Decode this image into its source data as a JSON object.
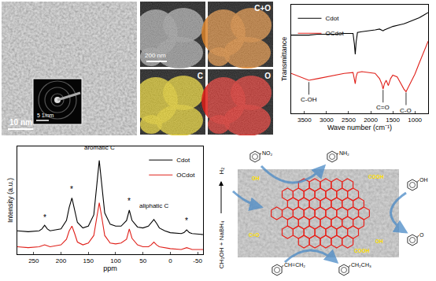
{
  "tem": {
    "scale_bar": "10 nm",
    "inset_scale_bar": "5 1/nm"
  },
  "eds": {
    "scale_bar": "200 nm",
    "maps": [
      {
        "label": "C+O",
        "color": "#d9822b"
      },
      {
        "label": "C",
        "color": "#e6cf1c"
      },
      {
        "label": "O",
        "color": "#dd1f17"
      }
    ]
  },
  "chart_data": [
    {
      "type": "line",
      "x_title": "Wave number (cm⁻¹)",
      "y_title": "Transmittance",
      "xlim": [
        3800,
        700
      ],
      "xticks": [
        3500,
        3000,
        2500,
        2000,
        1500,
        1000
      ],
      "ylim": [
        -0.2,
        1.05
      ],
      "yticks": [],
      "tick_labels": "x",
      "grid": false,
      "legend": "upper left",
      "x": [
        3800,
        3600,
        3400,
        3200,
        3000,
        2800,
        2600,
        2400,
        2370,
        2350,
        2330,
        2300,
        2200,
        2000,
        1900,
        1800,
        1750,
        1720,
        1690,
        1650,
        1600,
        1550,
        1500,
        1400,
        1300,
        1250,
        1200,
        1150,
        1100,
        1000,
        900,
        800,
        700
      ],
      "series": [
        {
          "name": "Cdot",
          "color": "#000000",
          "values": [
            0.7,
            0.7,
            0.7,
            0.71,
            0.71,
            0.71,
            0.72,
            0.72,
            0.6,
            0.48,
            0.62,
            0.73,
            0.74,
            0.75,
            0.76,
            0.77,
            0.76,
            0.75,
            0.76,
            0.77,
            0.78,
            0.79,
            0.8,
            0.81,
            0.82,
            0.83,
            0.84,
            0.85,
            0.86,
            0.88,
            0.9,
            0.93,
            0.96
          ]
        },
        {
          "name": "OCdot",
          "color": "#e0201a",
          "values": [
            0.26,
            0.22,
            0.18,
            0.2,
            0.22,
            0.24,
            0.26,
            0.27,
            0.2,
            0.14,
            0.22,
            0.27,
            0.28,
            0.27,
            0.26,
            0.2,
            0.14,
            0.08,
            0.14,
            0.18,
            0.12,
            0.2,
            0.24,
            0.22,
            0.12,
            0.08,
            0.05,
            0.1,
            0.14,
            0.25,
            0.38,
            0.5,
            0.63
          ]
        }
      ],
      "annotations": [
        {
          "text": "C-OH",
          "x": 3400,
          "y": 0.16
        },
        {
          "text": "C=O",
          "x": 1720,
          "y": 0.07
        },
        {
          "text": "C-O",
          "x": 1200,
          "y": 0.04
        }
      ]
    },
    {
      "type": "line",
      "x_title": "ppm",
      "y_title": "Intensity (a.u.)",
      "xlim": [
        280,
        -60
      ],
      "xticks": [
        250,
        200,
        150,
        100,
        50,
        0,
        -50
      ],
      "ylim": [
        0,
        1.15
      ],
      "yticks": [],
      "tick_labels": "x",
      "grid": false,
      "legend": "upper right",
      "x": [
        280,
        260,
        240,
        235,
        230,
        225,
        220,
        200,
        190,
        185,
        180,
        175,
        170,
        160,
        150,
        140,
        135,
        130,
        125,
        120,
        110,
        100,
        90,
        80,
        75,
        70,
        60,
        50,
        40,
        35,
        30,
        25,
        20,
        10,
        0,
        -20,
        -25,
        -30,
        -35,
        -40,
        -60
      ],
      "series": [
        {
          "name": "Cdot",
          "color": "#000000",
          "values": [
            0.25,
            0.24,
            0.25,
            0.27,
            0.31,
            0.27,
            0.25,
            0.27,
            0.36,
            0.5,
            0.6,
            0.48,
            0.34,
            0.28,
            0.3,
            0.42,
            0.7,
            1.0,
            0.72,
            0.44,
            0.32,
            0.3,
            0.3,
            0.36,
            0.47,
            0.36,
            0.29,
            0.28,
            0.3,
            0.34,
            0.37,
            0.33,
            0.28,
            0.25,
            0.23,
            0.22,
            0.23,
            0.26,
            0.23,
            0.22,
            0.21
          ]
        },
        {
          "name": "OCdot",
          "color": "#e0201a",
          "values": [
            0.08,
            0.07,
            0.08,
            0.09,
            0.1,
            0.09,
            0.08,
            0.1,
            0.16,
            0.25,
            0.3,
            0.22,
            0.13,
            0.1,
            0.12,
            0.2,
            0.38,
            0.55,
            0.38,
            0.2,
            0.12,
            0.11,
            0.12,
            0.16,
            0.27,
            0.17,
            0.1,
            0.08,
            0.08,
            0.1,
            0.13,
            0.1,
            0.08,
            0.07,
            0.06,
            0.05,
            0.06,
            0.07,
            0.06,
            0.05,
            0.05
          ]
        }
      ],
      "annotations": [
        {
          "text": "aromatic C",
          "x": 130,
          "y": 1.08
        },
        {
          "text": "aliphatic C",
          "x": 30,
          "y": 0.46
        },
        {
          "text": "*",
          "x": 230,
          "y": 0.33
        },
        {
          "text": "*",
          "x": 180,
          "y": 0.63
        },
        {
          "text": "*",
          "x": 75,
          "y": 0.5
        },
        {
          "text": "*",
          "x": -30,
          "y": 0.29
        }
      ]
    }
  ],
  "scheme": {
    "reductant": "CH₃OH + NaBH₄",
    "product": "H₂",
    "reactions": [
      {
        "from": "NO₂",
        "to": "NH₂"
      },
      {
        "from": "OH",
        "to": "O"
      },
      {
        "from": "CH=CH₂",
        "to": "CH₂CH₃"
      }
    ],
    "surface_groups": [
      "OH",
      "COOH",
      "C=O",
      "OH",
      "COOH"
    ]
  }
}
